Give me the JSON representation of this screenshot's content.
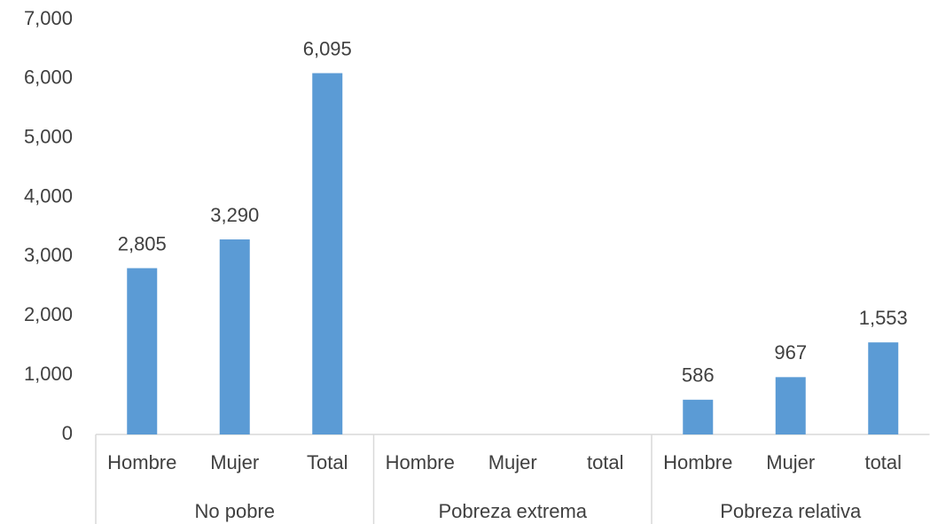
{
  "chart_data": {
    "type": "bar",
    "color": "#5b9bd5",
    "ylim": [
      0,
      7000
    ],
    "yticks": [
      0,
      {
        "value": 1000,
        "label": "1,000"
      },
      {
        "value": 2000,
        "label": "2,000"
      },
      {
        "value": 3000,
        "label": "3,000"
      },
      {
        "value": 4000,
        "label": "4,000"
      },
      {
        "value": 5000,
        "label": "5,000"
      },
      {
        "value": 6000,
        "label": "6,000"
      },
      {
        "value": 7000,
        "label": "7,000"
      }
    ],
    "groups": [
      {
        "name": "No pobre",
        "categories": [
          "Hombre",
          "Mujer",
          "Total"
        ],
        "values": [
          2805,
          3290,
          6095
        ],
        "value_labels": [
          "2,805",
          "3,290",
          "6,095"
        ]
      },
      {
        "name": "Pobreza extrema",
        "categories": [
          "Hombre",
          "Mujer",
          "total"
        ],
        "values": [
          null,
          null,
          null
        ],
        "value_labels": [
          null,
          null,
          null
        ]
      },
      {
        "name": "Pobreza relativa",
        "categories": [
          "Hombre",
          "Mujer",
          "total"
        ],
        "values": [
          586,
          967,
          1553
        ],
        "value_labels": [
          "586",
          "967",
          "1,553"
        ]
      }
    ]
  }
}
